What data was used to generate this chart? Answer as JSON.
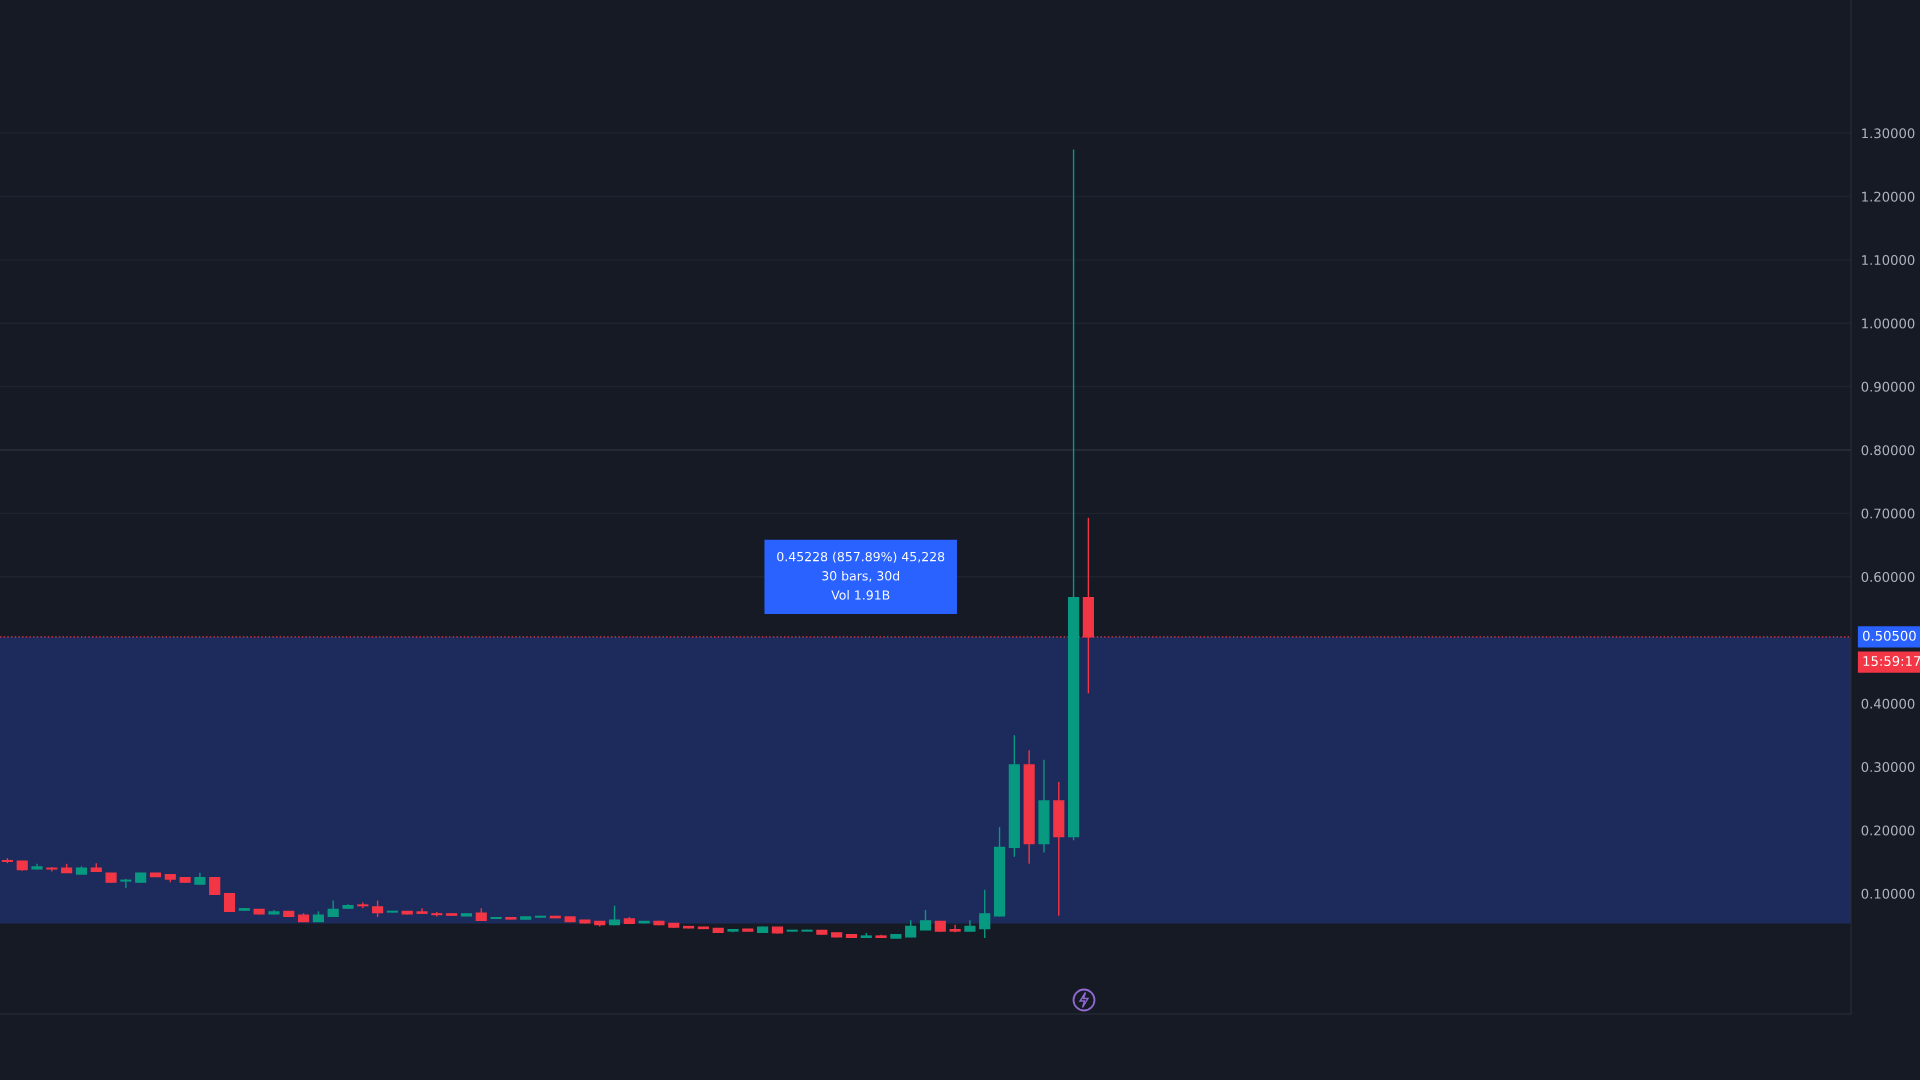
{
  "chart_data": {
    "type": "candlestick",
    "categories": [
      null,
      null,
      null,
      null,
      null,
      null,
      null,
      null,
      null,
      null,
      null,
      null,
      null,
      null,
      null,
      null,
      null,
      null,
      null,
      null,
      null,
      null,
      null,
      null,
      null,
      null,
      null,
      null,
      null,
      null,
      null,
      null,
      null,
      null,
      null,
      null,
      null,
      null,
      null,
      null,
      null,
      null,
      null,
      null,
      null,
      null,
      null,
      null,
      null,
      null,
      null,
      null,
      null,
      null,
      null,
      null,
      null,
      null,
      null,
      null,
      null,
      null,
      null,
      null,
      null,
      null,
      null,
      null,
      null,
      null,
      null,
      null,
      null,
      null,
      null,
      null,
      null,
      null,
      null,
      null,
      null,
      null,
      null,
      null,
      null,
      null,
      null,
      null,
      null,
      null,
      null,
      null,
      null,
      null,
      null,
      null,
      null,
      null,
      null,
      null,
      null,
      null,
      null,
      null,
      null,
      null,
      null,
      null,
      null,
      null,
      null,
      null,
      null,
      null,
      null,
      null,
      null,
      null,
      null,
      null,
      null,
      null,
      null,
      null,
      null
    ],
    "ohlc": [
      [
        0.152,
        0.156,
        0.148,
        0.151
      ],
      [
        0.151,
        0.152,
        0.136,
        0.138
      ],
      [
        0.139,
        0.147,
        0.138,
        0.142
      ],
      [
        0.14,
        0.142,
        0.135,
        0.139
      ],
      [
        0.14,
        0.147,
        0.133,
        0.133
      ],
      [
        0.131,
        0.143,
        0.131,
        0.14
      ],
      [
        0.14,
        0.148,
        0.134,
        0.135
      ],
      [
        0.132,
        0.132,
        0.117,
        0.118
      ],
      [
        0.12,
        0.123,
        0.109,
        0.121
      ],
      [
        0.118,
        0.133,
        0.117,
        0.132
      ],
      [
        0.132,
        0.132,
        0.126,
        0.127
      ],
      [
        0.13,
        0.13,
        0.118,
        0.123
      ],
      [
        0.125,
        0.125,
        0.117,
        0.118
      ],
      [
        0.115,
        0.133,
        0.114,
        0.125
      ],
      [
        0.125,
        0.125,
        0.098,
        0.099
      ],
      [
        0.1,
        0.1,
        0.071,
        0.072
      ],
      [
        0.074,
        0.077,
        0.073,
        0.076
      ],
      [
        0.075,
        0.075,
        0.067,
        0.068
      ],
      [
        0.068,
        0.074,
        0.067,
        0.071
      ],
      [
        0.072,
        0.072,
        0.063,
        0.064
      ],
      [
        0.066,
        0.069,
        0.055,
        0.056
      ],
      [
        0.056,
        0.072,
        0.055,
        0.066
      ],
      [
        0.064,
        0.089,
        0.063,
        0.075
      ],
      [
        0.077,
        0.083,
        0.076,
        0.081
      ],
      [
        0.082,
        0.086,
        0.077,
        0.081
      ],
      [
        0.079,
        0.089,
        0.063,
        0.07
      ],
      [
        0.071,
        0.072,
        0.07,
        0.072
      ],
      [
        0.072,
        0.072,
        0.067,
        0.068
      ],
      [
        0.071,
        0.077,
        0.068,
        0.069
      ],
      [
        0.068,
        0.071,
        0.064,
        0.067
      ],
      [
        0.068,
        0.068,
        0.066,
        0.066
      ],
      [
        0.065,
        0.068,
        0.064,
        0.068
      ],
      [
        0.069,
        0.077,
        0.057,
        0.058
      ],
      [
        0.061,
        0.062,
        0.06,
        0.062
      ],
      [
        0.062,
        0.063,
        0.059,
        0.06
      ],
      [
        0.06,
        0.063,
        0.059,
        0.063
      ],
      [
        0.063,
        0.064,
        0.062,
        0.064
      ],
      [
        0.064,
        0.064,
        0.061,
        0.062
      ],
      [
        0.063,
        0.063,
        0.056,
        0.056
      ],
      [
        0.058,
        0.058,
        0.053,
        0.054
      ],
      [
        0.056,
        0.056,
        0.048,
        0.051
      ],
      [
        0.051,
        0.081,
        0.05,
        0.058
      ],
      [
        0.06,
        0.063,
        0.052,
        0.053
      ],
      [
        0.054,
        0.056,
        0.053,
        0.056
      ],
      [
        0.056,
        0.057,
        0.05,
        0.051
      ],
      [
        0.053,
        0.053,
        0.046,
        0.047
      ],
      [
        0.048,
        0.048,
        0.045,
        0.046
      ],
      [
        0.047,
        0.047,
        0.044,
        0.045
      ],
      [
        0.045,
        0.045,
        0.038,
        0.039
      ],
      [
        0.041,
        0.043,
        0.039,
        0.043
      ],
      [
        0.044,
        0.044,
        0.041,
        0.041
      ],
      [
        0.039,
        0.048,
        0.038,
        0.047
      ],
      [
        0.047,
        0.047,
        0.037,
        0.038
      ],
      [
        0.041,
        0.042,
        0.04,
        0.042
      ],
      [
        0.041,
        0.043,
        0.041,
        0.042
      ],
      [
        0.042,
        0.043,
        0.035,
        0.036
      ],
      [
        0.038,
        0.038,
        0.031,
        0.032
      ],
      [
        0.035,
        0.035,
        0.031,
        0.031
      ],
      [
        0.031,
        0.038,
        0.03,
        0.033
      ],
      [
        0.033,
        0.035,
        0.03,
        0.031
      ],
      [
        0.03,
        0.035,
        0.03,
        0.035
      ],
      [
        0.032,
        0.058,
        0.031,
        0.048
      ],
      [
        0.043,
        0.074,
        0.042,
        0.057
      ],
      [
        0.056,
        0.057,
        0.04,
        0.041
      ],
      [
        0.043,
        0.051,
        0.039,
        0.041
      ],
      [
        0.041,
        0.058,
        0.04,
        0.048
      ],
      [
        0.045,
        0.106,
        0.03,
        0.068
      ],
      [
        0.065,
        0.205,
        0.064,
        0.173
      ],
      [
        0.173,
        0.35,
        0.158,
        0.303
      ],
      [
        0.303,
        0.326,
        0.147,
        0.179
      ],
      [
        0.179,
        0.311,
        0.165,
        0.246
      ],
      [
        0.246,
        0.276,
        0.065,
        0.19
      ],
      [
        0.19,
        1.274,
        0.184,
        0.567
      ],
      [
        0.567,
        0.693,
        0.416,
        0.505
      ],
      null,
      null,
      null,
      null,
      null,
      null,
      null,
      null,
      null,
      null,
      null,
      null,
      null,
      null,
      null,
      null,
      null,
      null,
      null,
      null,
      null,
      null,
      null,
      null,
      null,
      null,
      null,
      null,
      null,
      null,
      null,
      null,
      null,
      null,
      null,
      null,
      null,
      null,
      null,
      null,
      null,
      null,
      null,
      null,
      null,
      null,
      null,
      null,
      null,
      null,
      null
    ],
    "colors": [
      "#f23645",
      "#f23645",
      "#089981",
      "#f23645",
      "#f23645",
      "#089981",
      "#f23645",
      "#f23645",
      "#089981",
      "#089981",
      "#f23645",
      "#f23645",
      "#f23645",
      "#089981",
      "#f23645",
      "#f23645",
      "#089981",
      "#f23645",
      "#089981",
      "#f23645",
      "#f23645",
      "#089981",
      "#089981",
      "#089981",
      "#f23645",
      "#f23645",
      "#089981",
      "#f23645",
      "#f23645",
      "#f23645",
      "#f23645",
      "#089981",
      "#f23645",
      "#089981",
      "#f23645",
      "#089981",
      "#089981",
      "#f23645",
      "#f23645",
      "#f23645",
      "#f23645",
      "#089981",
      "#f23645",
      "#089981",
      "#f23645",
      "#f23645",
      "#f23645",
      "#f23645",
      "#f23645",
      "#089981",
      "#f23645",
      "#089981",
      "#f23645",
      "#089981",
      "#089981",
      "#f23645",
      "#f23645",
      "#f23645",
      "#089981",
      "#f23645",
      "#089981",
      "#089981",
      "#089981",
      "#f23645",
      "#f23645",
      "#089981",
      "#089981",
      "#089981",
      "#089981",
      "#f23645",
      "#089981",
      "#f23645",
      "#089981",
      "#f23645",
      null,
      null,
      null,
      null,
      null,
      null,
      null,
      null,
      null,
      null,
      null,
      null,
      null,
      null,
      null,
      null,
      null,
      null,
      null,
      null,
      null,
      null,
      null,
      null,
      null,
      null,
      null,
      null,
      null,
      null,
      null,
      null,
      null,
      null,
      null,
      null,
      null,
      null,
      null,
      null,
      null,
      null,
      null,
      null,
      null,
      null,
      null,
      null,
      null,
      null,
      null
    ],
    "ylim": [
      -0.09,
      1.51
    ],
    "yticks": [
      {
        "value": 0.1,
        "label": "0.10000"
      },
      {
        "value": 0.2,
        "label": "0.20000"
      },
      {
        "value": 0.3,
        "label": "0.30000"
      },
      {
        "value": 0.4,
        "label": "0.40000"
      },
      {
        "value": 0.6,
        "label": "0.60000"
      },
      {
        "value": 0.7,
        "label": "0.70000"
      },
      {
        "value": 0.8,
        "label": "0.80000"
      },
      {
        "value": 0.9,
        "label": "0.90000"
      },
      {
        "value": 1.0,
        "label": "1.00000"
      },
      {
        "value": 1.1,
        "label": "1.10000"
      },
      {
        "value": 1.2,
        "label": "1.20000"
      },
      {
        "value": 1.3,
        "label": "1.30000"
      }
    ],
    "tick_labels": "y",
    "grid": "y",
    "ref_lines": [
      {
        "axis": "y",
        "value": 0.505,
        "label": "0.50500",
        "color": "#f23645",
        "line_style": "dotted"
      },
      {
        "axis": "y",
        "value": 0.8,
        "color": "#2a2e39",
        "line_style": "solid"
      }
    ],
    "bands": [
      {
        "axis": "y",
        "from": 0.05272,
        "to": 0.505,
        "color": "#1c2a5c"
      }
    ],
    "annotations": [
      {
        "text": "0.45228 (857.89%) 45,228\n30 bars, 30d\nVol 1.91B",
        "y": 0.505
      },
      "15:59:17"
    ]
  }
}
